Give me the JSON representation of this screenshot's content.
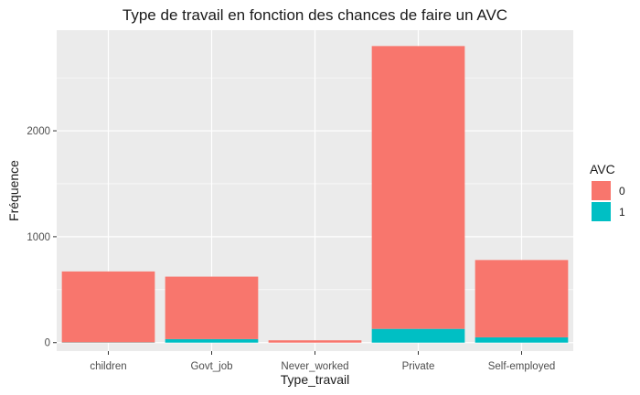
{
  "chart_data": {
    "type": "bar",
    "stacked": true,
    "title": "Type de travail en fonction des chances de faire un AVC",
    "xlabel": "Type_travail",
    "ylabel": "Fréquence",
    "categories": [
      "children",
      "Govt_job",
      "Never_worked",
      "Private",
      "Self-employed"
    ],
    "series": [
      {
        "name": "0",
        "color": "#F8766D",
        "values": [
          670,
          590,
          22,
          2670,
          730
        ]
      },
      {
        "name": "1",
        "color": "#00BFC4",
        "values": [
          2,
          33,
          0,
          130,
          50
        ]
      }
    ],
    "ylim": [
      -80,
      2950
    ],
    "yticks": [
      0,
      1000,
      2000
    ],
    "ytick_labels": [
      "0",
      "1000",
      "2000"
    ],
    "legend": {
      "title": "AVC",
      "position": "right"
    },
    "panel_background": "#EBEBEB",
    "grid": true,
    "grid_color": "#FFFFFF"
  }
}
